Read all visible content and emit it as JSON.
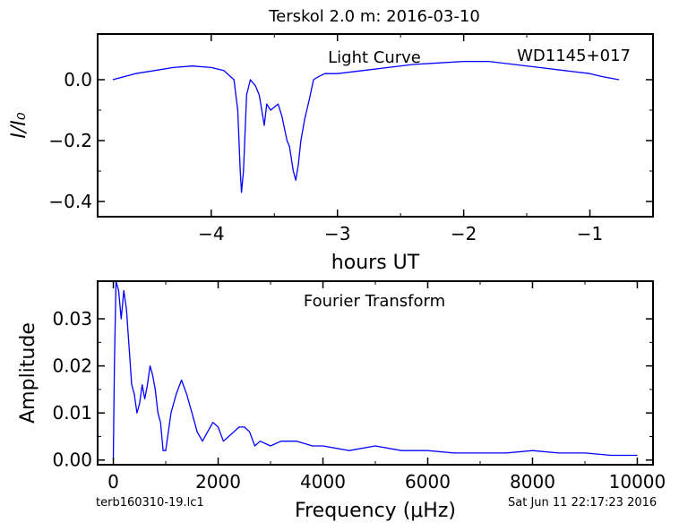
{
  "figure": {
    "title": "Terskol 2.0 m:  2016-03-10",
    "footer_left": "terb160310-19.lc1",
    "footer_right": "Sat Jun 11 22:17:23 2016",
    "line_color": "#0000ff"
  },
  "chart_data": [
    {
      "type": "line",
      "annotation": "Light Curve",
      "object_label": "WD1145+017",
      "xlabel": "hours UT",
      "ylabel": "I/I₀",
      "xlim": [
        -4.9,
        -0.5
      ],
      "ylim": [
        -0.45,
        0.15
      ],
      "xticks": [
        -4,
        -3,
        -2,
        -1
      ],
      "xtick_labels": [
        "−4",
        "−3",
        "−2",
        "−1"
      ],
      "yticks": [
        0.0,
        -0.2,
        -0.4
      ],
      "ytick_labels": [
        "0.0",
        "−0.2",
        "−0.4"
      ],
      "grid": false,
      "series": [
        {
          "color": "#0000ff",
          "x": [
            -4.78,
            -4.6,
            -4.45,
            -4.3,
            -4.15,
            -4.0,
            -3.9,
            -3.82,
            -3.79,
            -3.77,
            -3.76,
            -3.745,
            -3.72,
            -3.69,
            -3.65,
            -3.62,
            -3.6,
            -3.58,
            -3.56,
            -3.53,
            -3.5,
            -3.47,
            -3.44,
            -3.4,
            -3.38,
            -3.35,
            -3.33,
            -3.31,
            -3.29,
            -3.26,
            -3.22,
            -3.19,
            -3.15,
            -3.1,
            -3.0,
            -2.8,
            -2.6,
            -2.4,
            -2.2,
            -2.0,
            -1.8,
            -1.6,
            -1.4,
            -1.2,
            -1.0,
            -0.9,
            -0.77
          ],
          "y": [
            0.0,
            0.02,
            0.03,
            0.04,
            0.045,
            0.04,
            0.03,
            0.0,
            -0.1,
            -0.3,
            -0.37,
            -0.3,
            -0.05,
            0.0,
            -0.02,
            -0.05,
            -0.1,
            -0.15,
            -0.08,
            -0.1,
            -0.09,
            -0.08,
            -0.12,
            -0.2,
            -0.22,
            -0.3,
            -0.33,
            -0.28,
            -0.2,
            -0.13,
            -0.06,
            0.0,
            0.01,
            0.02,
            0.02,
            0.03,
            0.04,
            0.05,
            0.055,
            0.06,
            0.06,
            0.05,
            0.04,
            0.03,
            0.02,
            0.01,
            0.0
          ]
        }
      ]
    },
    {
      "type": "line",
      "annotation": "Fourier Transform",
      "xlabel": "Frequency (μHz)",
      "ylabel": "Amplitude",
      "xlim": [
        -300,
        10300
      ],
      "ylim": [
        -0.001,
        0.038
      ],
      "xticks": [
        0,
        2000,
        4000,
        6000,
        8000,
        10000
      ],
      "xtick_labels": [
        "0",
        "2000",
        "4000",
        "6000",
        "8000",
        "10000"
      ],
      "yticks": [
        0.0,
        0.01,
        0.02,
        0.03
      ],
      "ytick_labels": [
        "0.00",
        "0.01",
        "0.02",
        "0.03"
      ],
      "grid": false,
      "series": [
        {
          "color": "#0000ff",
          "x": [
            0,
            20,
            50,
            100,
            150,
            200,
            250,
            300,
            350,
            400,
            450,
            500,
            550,
            600,
            650,
            700,
            750,
            800,
            850,
            900,
            950,
            1000,
            1100,
            1200,
            1300,
            1400,
            1500,
            1600,
            1700,
            1800,
            1900,
            2000,
            2100,
            2200,
            2300,
            2400,
            2500,
            2600,
            2700,
            2800,
            3000,
            3200,
            3500,
            3800,
            4000,
            4500,
            5000,
            5500,
            6000,
            6500,
            7000,
            7500,
            8000,
            8500,
            9000,
            9500,
            10000
          ],
          "y": [
            0.0,
            0.02,
            0.038,
            0.036,
            0.03,
            0.036,
            0.032,
            0.024,
            0.016,
            0.014,
            0.01,
            0.012,
            0.016,
            0.013,
            0.016,
            0.02,
            0.018,
            0.015,
            0.01,
            0.008,
            0.002,
            0.002,
            0.01,
            0.014,
            0.017,
            0.014,
            0.01,
            0.006,
            0.004,
            0.006,
            0.008,
            0.007,
            0.004,
            0.005,
            0.006,
            0.007,
            0.007,
            0.006,
            0.003,
            0.004,
            0.003,
            0.004,
            0.004,
            0.003,
            0.003,
            0.002,
            0.003,
            0.002,
            0.002,
            0.0015,
            0.0015,
            0.0015,
            0.002,
            0.0015,
            0.0015,
            0.001,
            0.001
          ]
        }
      ]
    }
  ]
}
